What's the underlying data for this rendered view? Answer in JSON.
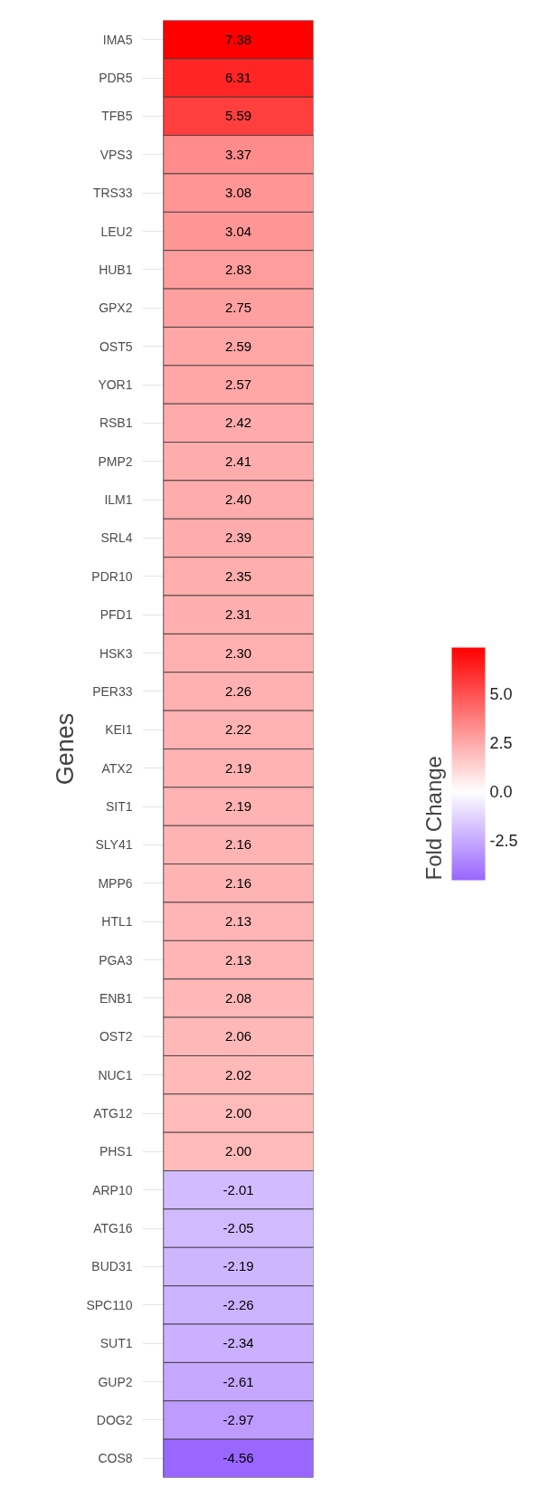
{
  "chart_data": {
    "type": "heatmap",
    "ylabel": "Genes",
    "clabel": "Fold Change",
    "categories": [
      null
    ],
    "y_categories": [
      "IMA5",
      "PDR5",
      "TFB5",
      "VPS3",
      "TRS33",
      "LEU2",
      "HUB1",
      "GPX2",
      "OST5",
      "YOR1",
      "RSB1",
      "PMP2",
      "ILM1",
      "SRL4",
      "PDR10",
      "PFD1",
      "HSK3",
      "PER33",
      "KEI1",
      "ATX2",
      "SIT1",
      "SLY41",
      "MPP6",
      "HTL1",
      "PGA3",
      "ENB1",
      "OST2",
      "NUC1",
      "ATG12",
      "PHS1",
      "ARP10",
      "ATG16",
      "BUD31",
      "SPC110",
      "SUT1",
      "GUP2",
      "DOG2",
      "COS8"
    ],
    "cells": [
      [
        7.38
      ],
      [
        6.31
      ],
      [
        5.59
      ],
      [
        3.37
      ],
      [
        3.08
      ],
      [
        3.04
      ],
      [
        2.83
      ],
      [
        2.75
      ],
      [
        2.59
      ],
      [
        2.57
      ],
      [
        2.42
      ],
      [
        2.41
      ],
      [
        2.4
      ],
      [
        2.39
      ],
      [
        2.35
      ],
      [
        2.31
      ],
      [
        2.3
      ],
      [
        2.26
      ],
      [
        2.22
      ],
      [
        2.19
      ],
      [
        2.19
      ],
      [
        2.16
      ],
      [
        2.16
      ],
      [
        2.13
      ],
      [
        2.13
      ],
      [
        2.08
      ],
      [
        2.06
      ],
      [
        2.02
      ],
      [
        2.0
      ],
      [
        2.0
      ],
      [
        -2.01
      ],
      [
        -2.05
      ],
      [
        -2.19
      ],
      [
        -2.26
      ],
      [
        -2.34
      ],
      [
        -2.61
      ],
      [
        -2.97
      ],
      [
        -4.56
      ]
    ],
    "cell_labels": [
      [
        "7.38"
      ],
      [
        "6.31"
      ],
      [
        "5.59"
      ],
      [
        "3.37"
      ],
      [
        "3.08"
      ],
      [
        "3.04"
      ],
      [
        "2.83"
      ],
      [
        "2.75"
      ],
      [
        "2.59"
      ],
      [
        "2.57"
      ],
      [
        "2.42"
      ],
      [
        "2.41"
      ],
      [
        "2.40"
      ],
      [
        "2.39"
      ],
      [
        "2.35"
      ],
      [
        "2.31"
      ],
      [
        "2.30"
      ],
      [
        "2.26"
      ],
      [
        "2.22"
      ],
      [
        "2.19"
      ],
      [
        "2.19"
      ],
      [
        "2.16"
      ],
      [
        "2.16"
      ],
      [
        "2.13"
      ],
      [
        "2.13"
      ],
      [
        "2.08"
      ],
      [
        "2.06"
      ],
      [
        "2.02"
      ],
      [
        "2.00"
      ],
      [
        "2.00"
      ],
      [
        "-2.01"
      ],
      [
        "-2.05"
      ],
      [
        "-2.19"
      ],
      [
        "-2.26"
      ],
      [
        "-2.34"
      ],
      [
        "-2.61"
      ],
      [
        "-2.97"
      ],
      [
        "-4.56"
      ]
    ],
    "clim": [
      -4.56,
      7.38
    ],
    "cticks": [
      {
        "value": -2.5,
        "label": "-2.5"
      },
      {
        "value": 0,
        "label": "0.0"
      },
      {
        "value": 2.5,
        "label": "2.5"
      },
      {
        "value": 5,
        "label": "5.0"
      }
    ],
    "grid": "y"
  }
}
